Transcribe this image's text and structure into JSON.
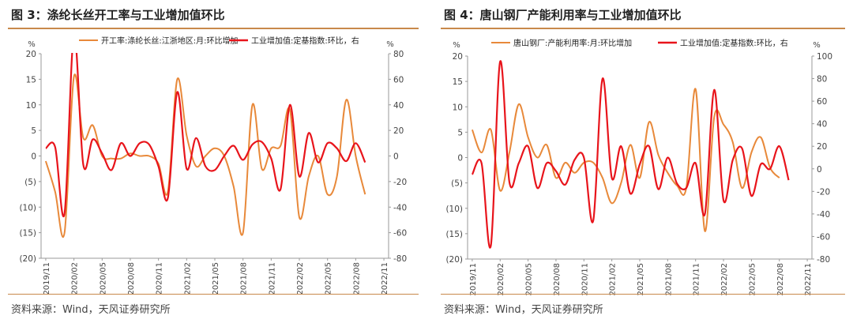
{
  "source_label": "资料来源：Wind，天风证券研究所",
  "chart_data": [
    {
      "type": "line",
      "title": "图 3：涤纶长丝开工率与工业增加值环比",
      "left_unit": "%",
      "right_unit": "%",
      "x": [
        "2019/11",
        "2019/12",
        "2020/01",
        "2020/02",
        "2020/03",
        "2020/04",
        "2020/05",
        "2020/06",
        "2020/07",
        "2020/08",
        "2020/09",
        "2020/10",
        "2020/11",
        "2020/12",
        "2021/01",
        "2021/02",
        "2021/03",
        "2021/04",
        "2021/05",
        "2021/06",
        "2021/07",
        "2021/08",
        "2021/09",
        "2021/10",
        "2021/11",
        "2021/12",
        "2022/01",
        "2022/02",
        "2022/03",
        "2022/04",
        "2022/05",
        "2022/06",
        "2022/07",
        "2022/08",
        "2022/09",
        "2022/10",
        "2022/11"
      ],
      "x_tick_labels": [
        "2019/11",
        "2020/02",
        "2020/05",
        "2020/08",
        "2020/11",
        "2021/02",
        "2021/05",
        "2021/08",
        "2021/11",
        "2022/02",
        "2022/05",
        "2022/08",
        "2022/11"
      ],
      "left_axis": {
        "min": -20,
        "max": 20,
        "ticks": [
          20,
          15,
          10,
          5,
          0,
          -5,
          -10,
          -15,
          -20
        ],
        "tick_labels": [
          "20",
          "15",
          "10",
          "5",
          "0",
          "(5)",
          "(10)",
          "(15)",
          "(20)"
        ]
      },
      "right_axis": {
        "min": -80,
        "max": 80,
        "ticks": [
          80,
          60,
          40,
          20,
          0,
          -20,
          -40,
          -60,
          -80
        ],
        "tick_labels": [
          "80",
          "60",
          "40",
          "20",
          "0",
          "-20",
          "-40",
          "-60",
          "-80"
        ]
      },
      "series": [
        {
          "name": "开工率:涤纶长丝:江浙地区:月:环比增加",
          "axis": "left",
          "color": "#e8893a",
          "values": [
            -1,
            -7,
            -15,
            15.5,
            3.5,
            6,
            0,
            -0.5,
            -0.5,
            0.5,
            0,
            0,
            -1.5,
            -7,
            15,
            4,
            -2,
            0,
            1.5,
            0,
            -6,
            -15,
            10,
            -2.5,
            1.5,
            2,
            9,
            -12,
            -4,
            0,
            -7.5,
            -4,
            11,
            0,
            -7.5,
            null,
            null
          ]
        },
        {
          "name": "工业增加值:定基指数:环比，右",
          "axis": "right",
          "color": "#e8141b",
          "values": [
            6,
            7,
            -45,
            95,
            -7,
            13,
            2,
            -11,
            10,
            0,
            10,
            9,
            -8,
            -33,
            50,
            -10,
            14,
            -8,
            -11,
            0,
            8,
            -3,
            9,
            11,
            -2,
            -26,
            40,
            -16,
            18,
            -5,
            10,
            6,
            -4,
            10,
            -5,
            null,
            null
          ]
        }
      ]
    },
    {
      "type": "line",
      "title": "图 4：唐山钢厂产能利用率与工业增加值环比",
      "left_unit": "%",
      "right_unit": "%",
      "x": [
        "2019/11",
        "2019/12",
        "2020/01",
        "2020/02",
        "2020/03",
        "2020/04",
        "2020/05",
        "2020/06",
        "2020/07",
        "2020/08",
        "2020/09",
        "2020/10",
        "2020/11",
        "2020/12",
        "2021/01",
        "2021/02",
        "2021/03",
        "2021/04",
        "2021/05",
        "2021/06",
        "2021/07",
        "2021/08",
        "2021/09",
        "2021/10",
        "2021/11",
        "2021/12",
        "2022/01",
        "2022/02",
        "2022/03",
        "2022/04",
        "2022/05",
        "2022/06",
        "2022/07",
        "2022/08",
        "2022/09",
        "2022/10",
        "2022/11"
      ],
      "x_tick_labels": [
        "2019/11",
        "2020/02",
        "2020/05",
        "2020/08",
        "2020/11",
        "2021/02",
        "2021/05",
        "2021/08",
        "2021/11",
        "2022/02",
        "2022/05",
        "2022/08",
        "2022/11"
      ],
      "left_axis": {
        "min": -20,
        "max": 20,
        "ticks": [
          20,
          15,
          10,
          5,
          0,
          -5,
          -10,
          -15,
          -20
        ],
        "tick_labels": [
          "20",
          "15",
          "10",
          "5",
          "0",
          "(5)",
          "(10)",
          "(15)",
          "(20)"
        ]
      },
      "right_axis": {
        "min": -80,
        "max": 100,
        "ticks": [
          100,
          80,
          60,
          40,
          20,
          0,
          -20,
          -40,
          -60,
          -80
        ],
        "tick_labels": [
          "100",
          "80",
          "60",
          "40",
          "20",
          "0",
          "-20",
          "-40",
          "-60",
          "-80"
        ]
      },
      "series": [
        {
          "name": "唐山钢厂:产能利用率:月:环比增加",
          "axis": "left",
          "color": "#e8893a",
          "values": [
            5.5,
            1,
            5.5,
            -6.5,
            1,
            10.5,
            4,
            0,
            2.5,
            -4,
            -1,
            -3,
            -1,
            -1,
            -4,
            -9,
            -5,
            2.5,
            -4,
            7,
            0.5,
            -3,
            -5.5,
            -6,
            13.5,
            -14.5,
            8,
            6.5,
            3,
            -6,
            1,
            4,
            -2,
            -4,
            null,
            null,
            null
          ]
        },
        {
          "name": "工业增加值:定基指数:环比，右",
          "axis": "right",
          "color": "#e8141b",
          "values": [
            -5,
            5,
            -68,
            95,
            -12,
            5,
            20,
            -17,
            5,
            -2,
            -14,
            8,
            10,
            -46,
            80,
            -8,
            20,
            -22,
            4,
            20,
            -18,
            10,
            -13,
            -17,
            5,
            -40,
            70,
            -28,
            8,
            18,
            -24,
            4,
            0,
            20,
            -10,
            null,
            null
          ]
        }
      ]
    }
  ]
}
